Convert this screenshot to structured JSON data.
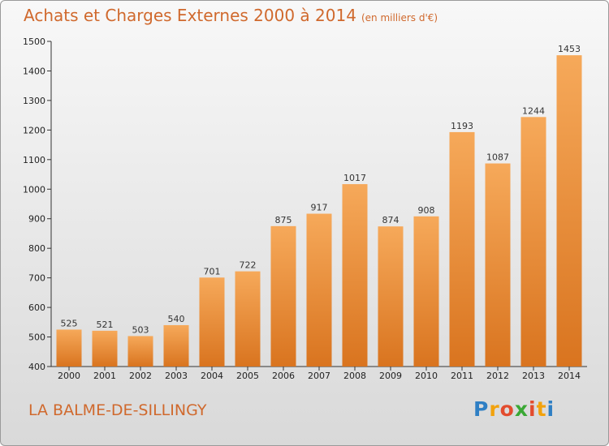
{
  "chart_data": {
    "type": "bar",
    "title": "Achats et Charges Externes 2000 à 2014",
    "subtitle": "(en milliers d'€)",
    "categories": [
      "2000",
      "2001",
      "2002",
      "2003",
      "2004",
      "2005",
      "2006",
      "2007",
      "2008",
      "2009",
      "2010",
      "2011",
      "2012",
      "2013",
      "2014"
    ],
    "values": [
      525,
      521,
      503,
      540,
      701,
      722,
      875,
      917,
      1017,
      874,
      908,
      1193,
      1087,
      1244,
      1453
    ],
    "ylim": [
      400,
      1500
    ],
    "yticks": [
      400,
      500,
      600,
      700,
      800,
      900,
      1000,
      1100,
      1200,
      1300,
      1400,
      1500
    ],
    "grid": false,
    "bar_color_top": "#f6a95a",
    "bar_color_bottom": "#d9741f"
  },
  "location": "LA BALME-DE-SILLINGY",
  "logo": {
    "letters": [
      "P",
      "r",
      "o",
      "x",
      "i",
      "t",
      "i"
    ],
    "colors": [
      "#2f7fc4",
      "#f2a20d",
      "#e34c2e",
      "#3aa835",
      "#e34c2e",
      "#f2a20d",
      "#2f7fc4"
    ]
  },
  "colors": {
    "title": "#d0692d",
    "axis": "#333333"
  }
}
